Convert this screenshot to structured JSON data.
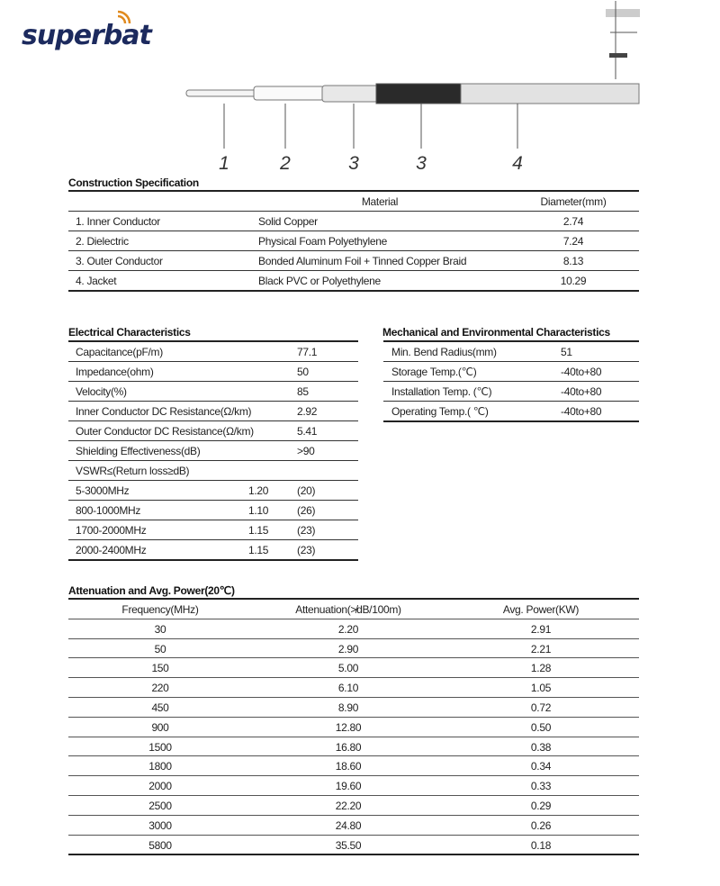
{
  "logo": "superbat",
  "diagram": {
    "labels": [
      "1",
      "2",
      "3",
      "3",
      "4"
    ]
  },
  "construction": {
    "title": "Construction Specification",
    "headers": [
      "Material",
      "Diameter(mm)"
    ],
    "rows": [
      [
        "1. Inner Conductor",
        "Solid Copper",
        "2.74"
      ],
      [
        "2. Dielectric",
        "Physical Foam Polyethylene",
        "7.24"
      ],
      [
        "3. Outer Conductor",
        "Bonded Aluminum Foil + Tinned Copper Braid",
        "8.13"
      ],
      [
        "4. Jacket",
        "Black PVC or Polyethylene",
        "10.29"
      ]
    ]
  },
  "electrical": {
    "title": "Electrical Characteristics",
    "rows": [
      [
        "Capacitance(pF/m)",
        "",
        "77.1"
      ],
      [
        "Impedance(ohm)",
        "",
        "50"
      ],
      [
        "Velocity(%)",
        "",
        "85"
      ],
      [
        "Inner Conductor DC Resistance(Ω/km)",
        "",
        "2.92"
      ],
      [
        "Outer Conductor DC Resistance(Ω/km)",
        "",
        "5.41"
      ],
      [
        "Shielding Effectiveness(dB)",
        "",
        ">90"
      ],
      [
        "VSWR≤(Return loss≥dB)",
        "",
        ""
      ],
      [
        "5-3000MHz",
        "1.20",
        "(20)"
      ],
      [
        "800-1000MHz",
        "1.10",
        "(26)"
      ],
      [
        "1700-2000MHz",
        "1.15",
        "(23)"
      ],
      [
        "2000-2400MHz",
        "1.15",
        "(23)"
      ]
    ]
  },
  "mechanical": {
    "title": "Mechanical and Environmental Characteristics",
    "rows": [
      [
        "Min. Bend Radius(mm)",
        "51"
      ],
      [
        "Storage Temp.(℃)",
        "-40to+80"
      ],
      [
        "Installation Temp. (℃)",
        "-40to+80"
      ],
      [
        "Operating Temp.( ℃)",
        "-40to+80"
      ]
    ]
  },
  "attenuation": {
    "title": "Attenuation and Avg. Power(20℃)",
    "headers": [
      "Frequency(MHz)",
      "Attenuation(≯dB/100m)",
      "Avg. Power(KW)"
    ],
    "rows": [
      [
        "30",
        "2.20",
        "2.91"
      ],
      [
        "50",
        "2.90",
        "2.21"
      ],
      [
        "150",
        "5.00",
        "1.28"
      ],
      [
        "220",
        "6.10",
        "1.05"
      ],
      [
        "450",
        "8.90",
        "0.72"
      ],
      [
        "900",
        "12.80",
        "0.50"
      ],
      [
        "1500",
        "16.80",
        "0.38"
      ],
      [
        "1800",
        "18.60",
        "0.34"
      ],
      [
        "2000",
        "19.60",
        "0.33"
      ],
      [
        "2500",
        "22.20",
        "0.29"
      ],
      [
        "3000",
        "24.80",
        "0.26"
      ],
      [
        "5800",
        "35.50",
        "0.18"
      ]
    ]
  }
}
